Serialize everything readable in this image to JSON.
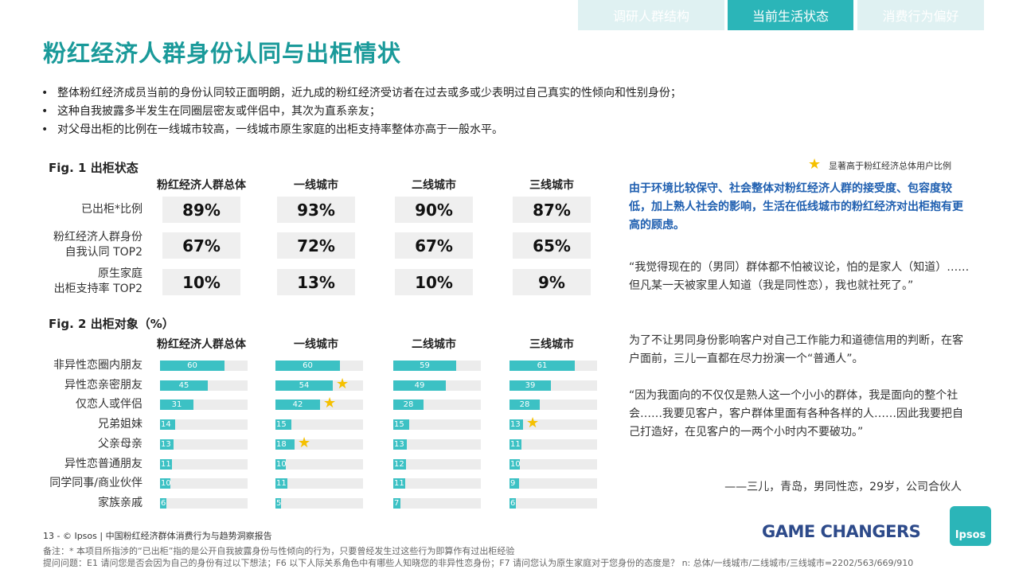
{
  "tabs": [
    {
      "label": "调研人群结构",
      "active": false
    },
    {
      "label": "当前生活状态",
      "active": true
    },
    {
      "label": "消费行为偏好",
      "active": false
    }
  ],
  "title": "粉红经济人群身份认同与出柜情状",
  "bullets": [
    "整体粉红经济成员当前的身份认同较正面明朗，近九成的粉红经济受访者在过去或多或少表明过自己真实的性倾向和性别身份；",
    "这种自我披露多半发生在同圈层密友或伴侣中，其次为直系亲友；",
    "对父母出柜的比例在一线城市较高，一线城市原生家庭的出柜支持率整体亦高于一般水平。"
  ],
  "fig1": {
    "title": "Fig. 1  出柜状态",
    "columns": [
      "粉红经济人群总体",
      "一线城市",
      "二线城市",
      "三线城市"
    ],
    "rows": [
      {
        "label_lines": [
          "已出柜*比例"
        ],
        "values": [
          "89%",
          "93%",
          "90%",
          "87%"
        ]
      },
      {
        "label_lines": [
          "粉红经济人群身份",
          "自我认同 TOP2"
        ],
        "values": [
          "67%",
          "72%",
          "67%",
          "65%"
        ]
      },
      {
        "label_lines": [
          "原生家庭",
          "出柜支持率 TOP2"
        ],
        "values": [
          "10%",
          "13%",
          "10%",
          "9%"
        ]
      }
    ]
  },
  "chart_data": {
    "type": "bar",
    "title": "Fig. 2  出柜对象（%）",
    "columns": [
      "粉红经济人群总体",
      "一线城市",
      "二线城市",
      "三线城市"
    ],
    "categories": [
      "非异性恋圈内朋友",
      "异性恋亲密朋友",
      "仅恋人或伴侣",
      "兄弟姐妹",
      "父亲母亲",
      "异性恋普通朋友",
      "同学同事/商业伙伴",
      "家族亲戚"
    ],
    "xlim": [
      0,
      100
    ],
    "series": [
      {
        "name": "粉红经济人群总体",
        "values": [
          60,
          45,
          31,
          14,
          13,
          11,
          10,
          6
        ],
        "stars": [
          false,
          false,
          false,
          false,
          false,
          false,
          false,
          false
        ]
      },
      {
        "name": "一线城市",
        "values": [
          60,
          54,
          42,
          15,
          18,
          10,
          11,
          5
        ],
        "stars": [
          false,
          true,
          true,
          false,
          true,
          false,
          false,
          false
        ]
      },
      {
        "name": "二线城市",
        "values": [
          59,
          49,
          28,
          15,
          13,
          12,
          11,
          7
        ],
        "stars": [
          false,
          false,
          false,
          false,
          false,
          false,
          false,
          false
        ]
      },
      {
        "name": "三线城市",
        "values": [
          61,
          39,
          28,
          13,
          11,
          10,
          9,
          6
        ],
        "stars": [
          false,
          false,
          false,
          true,
          false,
          false,
          false,
          false
        ]
      }
    ],
    "colors": {
      "bar": "#3cc1c4",
      "track": "#ececec",
      "star": "#f5c000"
    }
  },
  "legend": {
    "text": "显著高于粉红经济总体用户比例",
    "icon": "star-icon"
  },
  "insight": "由于环境比较保守、社会整体对粉红经济人群的接受度、包容度较低，加上熟人社会的影响，生活在低线城市的粉红经济对出柜抱有更高的顾虑。",
  "quotes": [
    "“我觉得现在的（男同）群体都不怕被议论，怕的是家人（知道）……但凡某一天被家里人知道（我是同性恋），我也就社死了。”",
    "为了不让男同身份影响客户对自己工作能力和道德信用的判断，在客户面前，三儿一直都在尽力扮演一个“普通人”。",
    "“因为我面向的不仅仅是熟人这一个小小的群体，我是面向的整个社会……我要见客户，客户群体里面有各种各样的人……因此我要把自己打造好，在见客户的一两个小时内不要破功。”"
  ],
  "signature": "——三儿，青岛，男同性恋，29岁，公司合伙人",
  "footer": {
    "page": "13 - © Ipsos  |  中国粉红经济群体消费行为与趋势洞察报告",
    "note": "备注：* 本项目所指涉的“已出柜”指的是公开自我披露身份与性倾向的行为，只要曾经发生过这些行为即算作有过出柜经验",
    "questions": "提问问题：E1 请问您是否会因为自己的身份有过以下想法；F6 以下人际关系角色中有哪些人知晓您的非异性恋身份；F7 请问您认为原生家庭对于您身份的态度是？ n: 总体/一线城市/二线城市/三线城市=2202/563/669/910",
    "brand": "GAME CHANGERS",
    "logo": "Ipsos"
  },
  "colors": {
    "accent": "#2bb5b8",
    "title": "#1a9a9a",
    "insight": "#1f5fb0"
  }
}
